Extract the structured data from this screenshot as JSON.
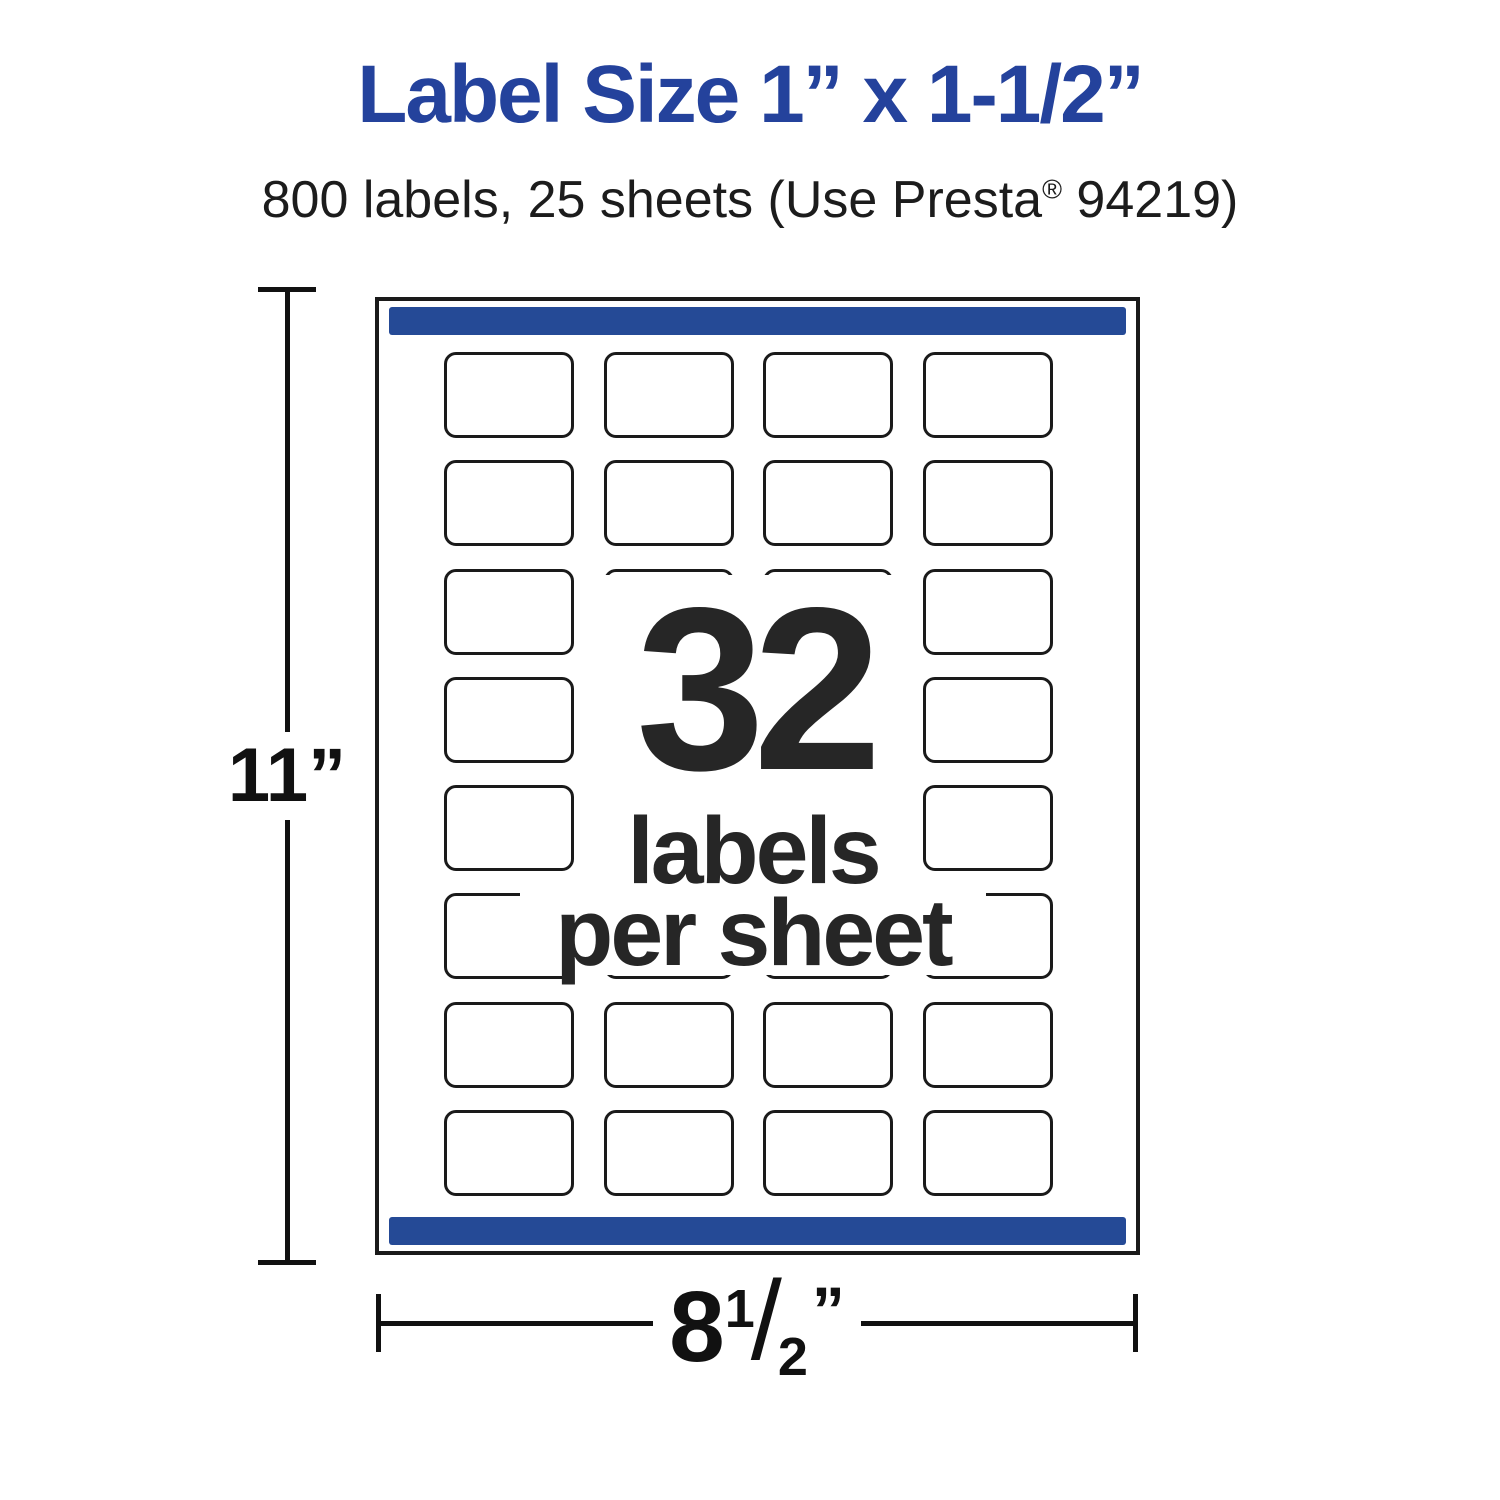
{
  "title": "Label Size 1” x 1-1/2”",
  "subtitle": {
    "before_reg": "800 labels, 25 sheets (Use Presta",
    "reg_mark": "®",
    "after_reg": " 94219)"
  },
  "sheet": {
    "labels_per_sheet_count": "32",
    "caption_line1": "labels",
    "caption_line2": "per sheet",
    "rows": 8,
    "columns": 4,
    "total_cells": 32
  },
  "dimensions": {
    "height_value": "11",
    "height_unit": "”",
    "width_whole": "8",
    "width_fraction_numerator": "1",
    "width_fraction_slash": "/",
    "width_fraction_denominator": "2",
    "width_unit": "”"
  },
  "colors": {
    "title_blue": "#24429c",
    "bar_blue": "#254a96",
    "ink": "#262626"
  }
}
